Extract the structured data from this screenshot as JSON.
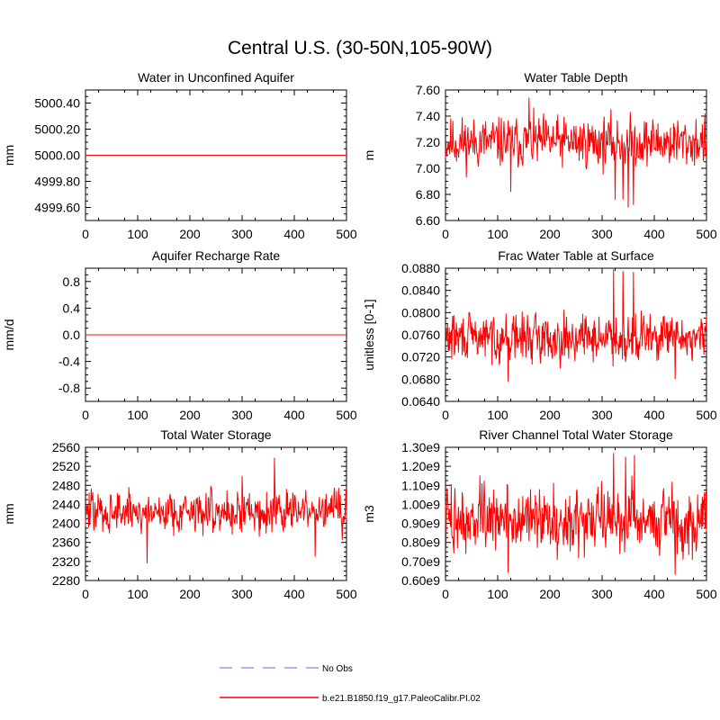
{
  "figure": {
    "title": "Central U.S. (30-50N,105-90W)"
  },
  "legend": {
    "items": [
      {
        "label": "No Obs",
        "color": "#9999ee",
        "style": "dashed"
      },
      {
        "label": "b.e21.B1850.f19_g17.PaleoCalibr.PI.02",
        "color": "#ff0000",
        "style": "solid"
      }
    ]
  },
  "chart_data": [
    {
      "type": "line",
      "title": "Water in Unconfined Aquifer",
      "ylabel": "mm",
      "xlim": [
        0,
        500
      ],
      "ylim": [
        4999.5,
        5000.5
      ],
      "xticks": [
        "0",
        "100",
        "200",
        "300",
        "400",
        "500"
      ],
      "yticks": [
        "4999.60",
        "4999.80",
        "5000.00",
        "5000.20",
        "5000.40"
      ],
      "ytick_values": [
        4999.6,
        4999.8,
        5000.0,
        5000.2,
        5000.4
      ],
      "series": [
        {
          "kind": "constant",
          "value": 5000.0,
          "color": "#ff0000"
        }
      ]
    },
    {
      "type": "line",
      "title": "Water Table Depth",
      "ylabel": "m",
      "xlim": [
        0,
        500
      ],
      "ylim": [
        6.6,
        7.6
      ],
      "xticks": [
        "0",
        "100",
        "200",
        "300",
        "400",
        "500"
      ],
      "yticks": [
        "6.60",
        "6.80",
        "7.00",
        "7.20",
        "7.40",
        "7.60"
      ],
      "ytick_values": [
        6.6,
        6.8,
        7.0,
        7.2,
        7.4,
        7.6
      ],
      "series": [
        {
          "kind": "noise",
          "mean": 7.2,
          "spread": 0.11,
          "min": 6.7,
          "max": 7.54,
          "seed": 11,
          "spikes": [
            [
              325,
              6.76
            ],
            [
              340,
              6.76
            ],
            [
              350,
              6.7
            ],
            [
              360,
              6.72
            ],
            [
              160,
              7.54
            ],
            [
              125,
              6.82
            ]
          ],
          "color": "#ff0000"
        }
      ]
    },
    {
      "type": "line",
      "title": "Aquifer Recharge Rate",
      "ylabel": "mm/d",
      "xlim": [
        0,
        500
      ],
      "ylim": [
        -1.0,
        1.0
      ],
      "xticks": [
        "0",
        "100",
        "200",
        "300",
        "400",
        "500"
      ],
      "yticks": [
        "-0.8",
        "-0.4",
        "0.0",
        "0.4",
        "0.8"
      ],
      "ytick_values": [
        -0.8,
        -0.4,
        0.0,
        0.4,
        0.8
      ],
      "series": [
        {
          "kind": "constant",
          "value": 0.0,
          "color": "#ff0000"
        }
      ]
    },
    {
      "type": "line",
      "title": "Frac Water Table at Surface",
      "ylabel": "unitless [0-1]",
      "xlim": [
        0,
        500
      ],
      "ylim": [
        0.064,
        0.088
      ],
      "xticks": [
        "0",
        "100",
        "200",
        "300",
        "400",
        "500"
      ],
      "yticks": [
        "0.0640",
        "0.0680",
        "0.0720",
        "0.0760",
        "0.0800",
        "0.0840",
        "0.0880"
      ],
      "ytick_values": [
        0.064,
        0.068,
        0.072,
        0.076,
        0.08,
        0.084,
        0.088
      ],
      "series": [
        {
          "kind": "noise",
          "mean": 0.0755,
          "spread": 0.0024,
          "min": 0.0675,
          "max": 0.0878,
          "seed": 29,
          "spikes": [
            [
              322,
              0.0878
            ],
            [
              340,
              0.0875
            ],
            [
              360,
              0.0873
            ],
            [
              120,
              0.0675
            ],
            [
              440,
              0.068
            ]
          ],
          "color": "#ff0000"
        }
      ]
    },
    {
      "type": "line",
      "title": "Total Water Storage",
      "ylabel": "mm",
      "xlim": [
        0,
        500
      ],
      "ylim": [
        2280,
        2560
      ],
      "xticks": [
        "0",
        "100",
        "200",
        "300",
        "400",
        "500"
      ],
      "yticks": [
        "2280",
        "2320",
        "2360",
        "2400",
        "2440",
        "2480",
        "2520",
        "2560"
      ],
      "ytick_values": [
        2280,
        2320,
        2360,
        2400,
        2440,
        2480,
        2520,
        2560
      ],
      "series": [
        {
          "kind": "noise",
          "mean": 2425,
          "spread": 26,
          "min": 2315,
          "max": 2538,
          "seed": 47,
          "spikes": [
            [
              362,
              2538
            ],
            [
              118,
              2316
            ],
            [
              440,
              2330
            ],
            [
              300,
              2500
            ]
          ],
          "color": "#ff0000"
        }
      ]
    },
    {
      "type": "line",
      "title": "River Channel Total Water Storage",
      "ylabel": "m3",
      "xlim": [
        0,
        500
      ],
      "ylim": [
        0.6,
        1.3
      ],
      "xticks": [
        "0",
        "100",
        "200",
        "300",
        "400",
        "500"
      ],
      "yticks": [
        "0.60e9",
        "0.70e9",
        "0.80e9",
        "0.90e9",
        "1.00e9",
        "1.10e9",
        "1.20e9",
        "1.30e9"
      ],
      "ytick_values": [
        0.6,
        0.7,
        0.8,
        0.9,
        1.0,
        1.1,
        1.2,
        1.3
      ],
      "series": [
        {
          "kind": "noise",
          "mean": 0.92,
          "spread": 0.1,
          "min": 0.63,
          "max": 1.27,
          "seed": 73,
          "spikes": [
            [
              322,
              1.27
            ],
            [
              345,
              1.25
            ],
            [
              362,
              1.26
            ],
            [
              120,
              0.64
            ],
            [
              440,
              0.63
            ]
          ],
          "color": "#ff0000"
        }
      ]
    }
  ]
}
